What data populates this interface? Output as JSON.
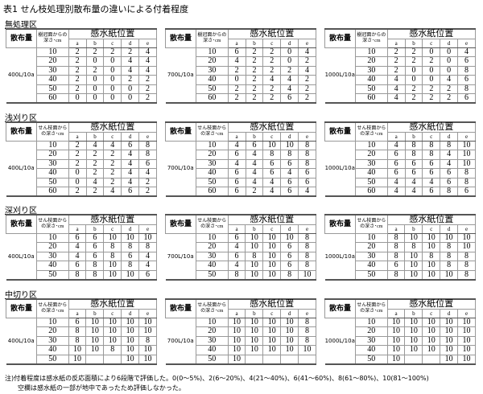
{
  "title": "表1 せん枝処理別散布量の違いによる付着程度",
  "header": {
    "dose": "散布量",
    "position": "感水紙位置",
    "positions": [
      "a",
      "b",
      "c",
      "d",
      "e"
    ]
  },
  "sections": [
    {
      "label": "無処理区",
      "depth_header": "樹冠面からの深さ･cm",
      "tables": [
        {
          "amount": "400L/10a",
          "rows": [
            [
              "10",
              "2",
              "2",
              "2",
              "2",
              "4"
            ],
            [
              "20",
              "2",
              "0",
              "0",
              "4",
              "4"
            ],
            [
              "30",
              "2",
              "2",
              "0",
              "4",
              "4"
            ],
            [
              "40",
              "2",
              "0",
              "0",
              "2",
              "2"
            ],
            [
              "50",
              "2",
              "0",
              "0",
              "0",
              "2"
            ],
            [
              "60",
              "0",
              "0",
              "0",
              "0",
              "2"
            ]
          ]
        },
        {
          "amount": "700L/10a",
          "rows": [
            [
              "10",
              "6",
              "2",
              "2",
              "0",
              "4"
            ],
            [
              "20",
              "4",
              "2",
              "2",
              "0",
              "2"
            ],
            [
              "30",
              "2",
              "2",
              "2",
              "2",
              "4"
            ],
            [
              "40",
              "0",
              "2",
              "4",
              "4",
              "2"
            ],
            [
              "50",
              "2",
              "2",
              "2",
              "4",
              "2"
            ],
            [
              "60",
              "2",
              "2",
              "2",
              "6",
              "2"
            ]
          ]
        },
        {
          "amount": "1000L/10a",
          "rows": [
            [
              "10",
              "2",
              "2",
              "0",
              "0",
              "4"
            ],
            [
              "20",
              "2",
              "2",
              "2",
              "0",
              "6"
            ],
            [
              "30",
              "2",
              "0",
              "0",
              "0",
              "8"
            ],
            [
              "40",
              "4",
              "0",
              "0",
              "4",
              "6"
            ],
            [
              "50",
              "4",
              "2",
              "2",
              "2",
              "8"
            ],
            [
              "60",
              "4",
              "2",
              "2",
              "2",
              "6"
            ]
          ]
        }
      ]
    },
    {
      "label": "浅刈り区",
      "depth_header": "せん枝面からの深さ･cm",
      "tables": [
        {
          "amount": "400L/10a",
          "rows": [
            [
              "10",
              "2",
              "4",
              "4",
              "6",
              "8"
            ],
            [
              "20",
              "2",
              "2",
              "2",
              "4",
              "8"
            ],
            [
              "30",
              "2",
              "2",
              "2",
              "4",
              "6"
            ],
            [
              "40",
              "0",
              "2",
              "2",
              "4",
              "4"
            ],
            [
              "50",
              "0",
              "4",
              "2",
              "4",
              "2"
            ],
            [
              "60",
              "2",
              "2",
              "4",
              "6",
              "2"
            ]
          ]
        },
        {
          "amount": "700L/10a",
          "rows": [
            [
              "10",
              "4",
              "6",
              "10",
              "10",
              "8"
            ],
            [
              "20",
              "6",
              "4",
              "8",
              "8",
              "8"
            ],
            [
              "30",
              "4",
              "4",
              "6",
              "6",
              "8"
            ],
            [
              "40",
              "6",
              "4",
              "6",
              "4",
              "6"
            ],
            [
              "50",
              "6",
              "4",
              "4",
              "6",
              "6"
            ],
            [
              "60",
              "6",
              "2",
              "4",
              "6",
              "4"
            ]
          ]
        },
        {
          "amount": "1000L/10a",
          "rows": [
            [
              "10",
              "4",
              "8",
              "8",
              "8",
              "10"
            ],
            [
              "20",
              "6",
              "8",
              "8",
              "4",
              "10"
            ],
            [
              "30",
              "6",
              "6",
              "6",
              "4",
              "10"
            ],
            [
              "40",
              "6",
              "6",
              "6",
              "6",
              "8"
            ],
            [
              "50",
              "4",
              "4",
              "4",
              "6",
              "8"
            ],
            [
              "60",
              "4",
              "4",
              "6",
              "8",
              "6"
            ]
          ]
        }
      ]
    },
    {
      "label": "深刈り区",
      "depth_header": "せん枝面からの深さ･cm",
      "tables": [
        {
          "amount": "400L/10a",
          "rows": [
            [
              "10",
              "6",
              "6",
              "10",
              "10",
              "10"
            ],
            [
              "20",
              "4",
              "6",
              "8",
              "8",
              "8"
            ],
            [
              "30",
              "4",
              "6",
              "8",
              "6",
              "4"
            ],
            [
              "40",
              "6",
              "8",
              "10",
              "8",
              "4"
            ],
            [
              "50",
              "8",
              "8",
              "10",
              "10",
              "6"
            ]
          ]
        },
        {
          "amount": "700L/10a",
          "rows": [
            [
              "10",
              "6",
              "10",
              "10",
              "10",
              "8"
            ],
            [
              "20",
              "4",
              "10",
              "10",
              "6",
              "8"
            ],
            [
              "30",
              "6",
              "8",
              "10",
              "6",
              "8"
            ],
            [
              "40",
              "4",
              "10",
              "10",
              "6",
              "8"
            ],
            [
              "50",
              "8",
              "10",
              "10",
              "8",
              "10"
            ]
          ]
        },
        {
          "amount": "1000L/10a",
          "rows": [
            [
              "10",
              "8",
              "10",
              "10",
              "10",
              "10"
            ],
            [
              "20",
              "8",
              "8",
              "10",
              "8",
              "10"
            ],
            [
              "30",
              "8",
              "10",
              "8",
              "8",
              "8"
            ],
            [
              "40",
              "6",
              "10",
              "10",
              "8",
              "8"
            ],
            [
              "50",
              "8",
              "10",
              "10",
              "10",
              "8"
            ]
          ]
        }
      ]
    },
    {
      "label": "中切り区",
      "depth_header": "せん枝面からの深さ･cm",
      "tables": [
        {
          "amount": "400L/10a",
          "rows": [
            [
              "10",
              "6",
              "10",
              "10",
              "10",
              "10"
            ],
            [
              "20",
              "8",
              "10",
              "10",
              "10",
              "10"
            ],
            [
              "30",
              "8",
              "10",
              "10",
              "10",
              "8"
            ],
            [
              "40",
              "10",
              "10",
              "8",
              "10",
              "10"
            ],
            [
              "50",
              "10",
              "",
              "",
              "10",
              "10"
            ]
          ]
        },
        {
          "amount": "700L/10a",
          "rows": [
            [
              "10",
              "10",
              "10",
              "10",
              "10",
              "8"
            ],
            [
              "20",
              "10",
              "10",
              "10",
              "10",
              "8"
            ],
            [
              "30",
              "10",
              "10",
              "10",
              "10",
              "8"
            ],
            [
              "40",
              "10",
              "10",
              "10",
              "10",
              "10"
            ],
            [
              "50",
              "10",
              "",
              "",
              "",
              ""
            ]
          ]
        },
        {
          "amount": "1000L/10a",
          "rows": [
            [
              "10",
              "10",
              "10",
              "10",
              "10",
              "10"
            ],
            [
              "20",
              "10",
              "10",
              "10",
              "10",
              "10"
            ],
            [
              "30",
              "10",
              "10",
              "10",
              "10",
              "10"
            ],
            [
              "40",
              "10",
              "10",
              "10",
              "10",
              "10"
            ],
            [
              "50",
              "10",
              "",
              "",
              "10",
              "10"
            ]
          ]
        }
      ]
    }
  ],
  "notes": [
    "注)付着程度は感水紙の反応面積により6段階で評価した。0(0～5%)、2(6～20%)、4(21～40%)、6(41～60%)、8(61～80%)、10(81～100%)",
    "空欄は感水紙の一部が地中であったため評価しなかった。"
  ]
}
